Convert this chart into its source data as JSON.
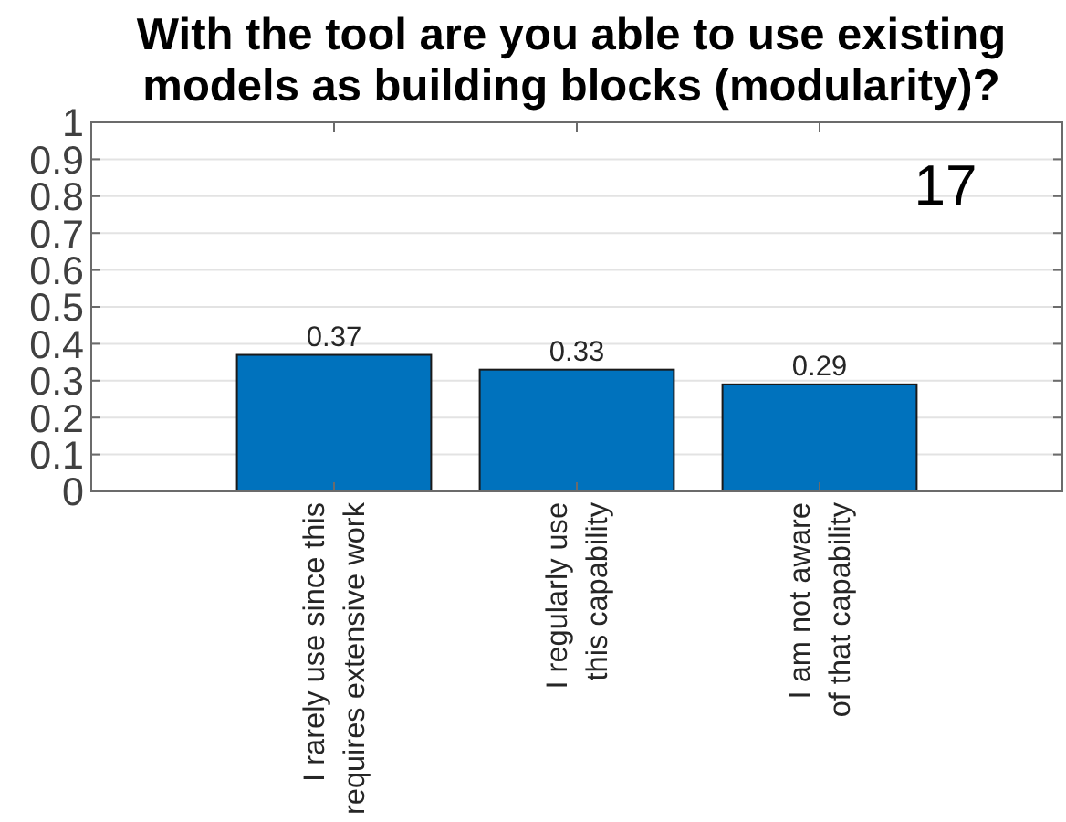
{
  "chart_data": {
    "type": "bar",
    "title": "With the tool are you able to use existing\nmodels as building blocks (modularity)?",
    "categories": [
      "I rarely use since this\nrequires extensive work",
      "I regularly use\nthis capability",
      "I am not aware\nof that capability"
    ],
    "values": [
      0.37,
      0.33,
      0.29
    ],
    "color": "#0072bd",
    "ylim": [
      0,
      1
    ],
    "yticks": [
      0,
      0.1,
      0.2,
      0.3,
      0.4,
      0.5,
      0.6,
      0.7,
      0.8,
      0.9,
      1
    ],
    "grid": "y",
    "data_labels": true,
    "annotations": [
      "17"
    ]
  }
}
